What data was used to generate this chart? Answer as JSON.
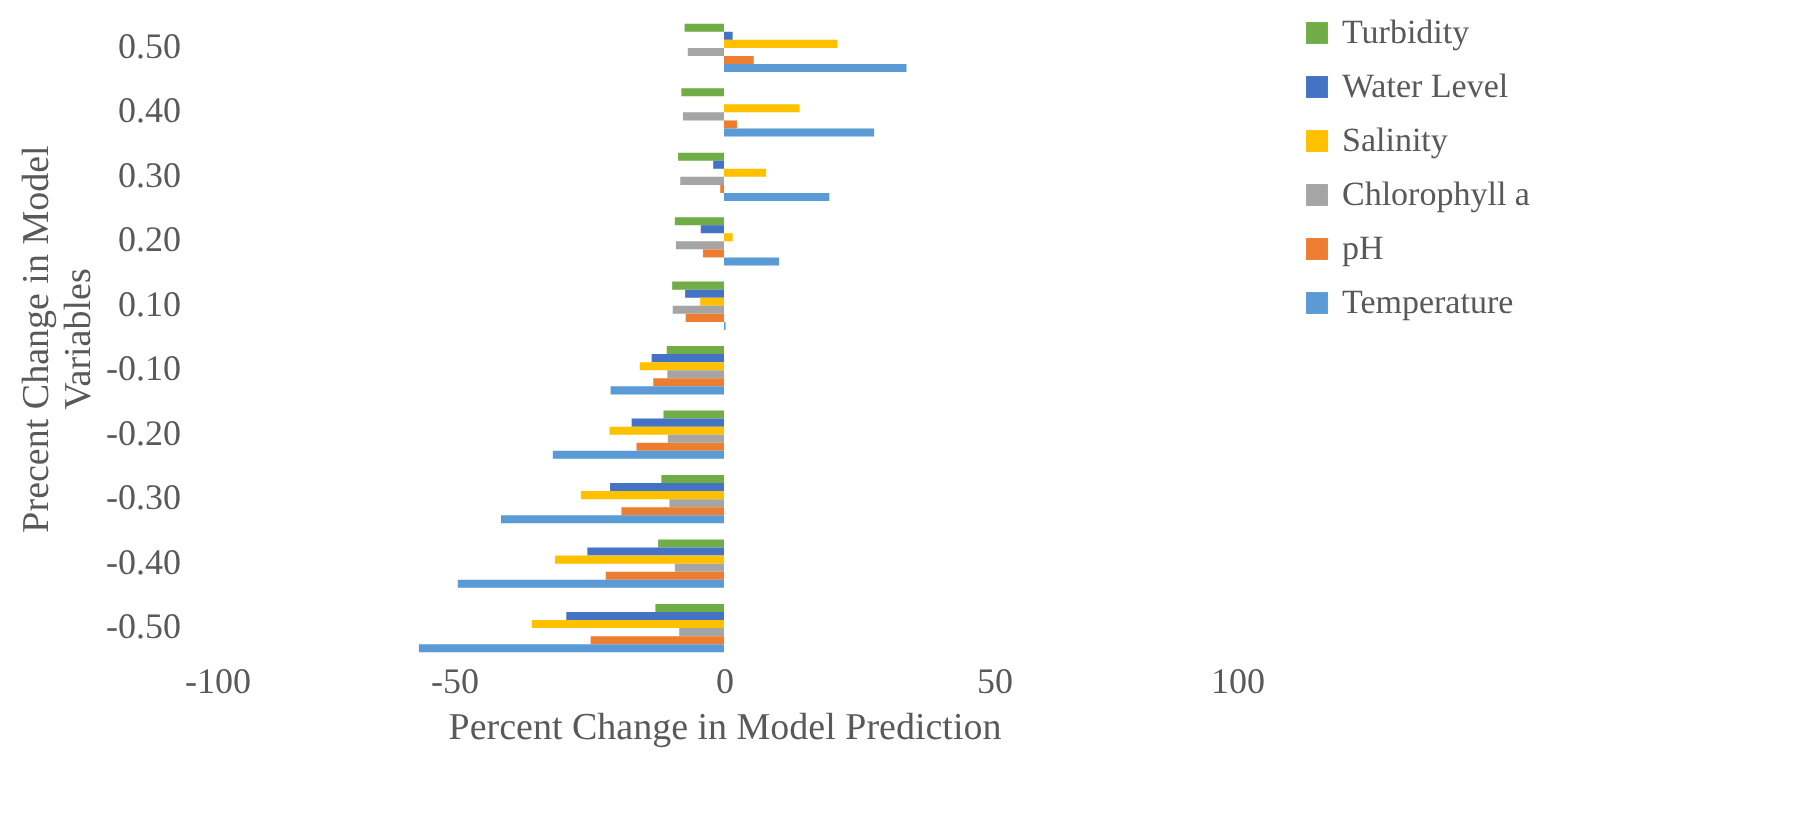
{
  "chart_data": {
    "type": "bar",
    "orientation": "horizontal",
    "xlabel": "Percent Change in Model Prediction",
    "ylabel": "Precent Change in Model Variables",
    "categories": [
      "0.50",
      "0.40",
      "0.30",
      "0.20",
      "0.10",
      "-0.10",
      "-0.20",
      "-0.30",
      "-0.40",
      "-0.50"
    ],
    "xlim": [
      -100,
      100
    ],
    "xticks": [
      -100,
      -50,
      0,
      50,
      100
    ],
    "grid": false,
    "legend": "right",
    "series": [
      {
        "name": "Turbidity",
        "color": "#70ad47",
        "values": [
          -7.3,
          -7.9,
          -8.5,
          -9.1,
          -9.6,
          -10.6,
          -11.2,
          -11.6,
          -12.2,
          -12.7
        ]
      },
      {
        "name": "Water Level",
        "color": "#4472c4",
        "values": [
          1.6,
          0,
          -2,
          -4.3,
          -7.2,
          -13.4,
          -17.1,
          -21.1,
          -25.3,
          -29.2
        ]
      },
      {
        "name": "Salinity",
        "color": "#ffc000",
        "values": [
          21,
          14,
          7.8,
          1.6,
          -4.4,
          -15.6,
          -21.2,
          -26.5,
          -31.3,
          -35.6
        ]
      },
      {
        "name": "Chlorophyll a",
        "color": "#a5a5a5",
        "values": [
          -6.7,
          -7.6,
          -8.1,
          -8.9,
          -9.5,
          -10.5,
          -10.4,
          -10.1,
          -9.1,
          -8.3
        ]
      },
      {
        "name": "pH",
        "color": "#ed7d31",
        "values": [
          5.5,
          2.4,
          -0.7,
          -3.9,
          -7.1,
          -13.1,
          -16.2,
          -19,
          -21.9,
          -24.7
        ]
      },
      {
        "name": "Temperature",
        "color": "#5b9bd5",
        "values": [
          33.8,
          27.8,
          19.5,
          10.2,
          0.3,
          -21,
          -31.7,
          -41.3,
          -49.3,
          -56.5
        ]
      }
    ]
  }
}
